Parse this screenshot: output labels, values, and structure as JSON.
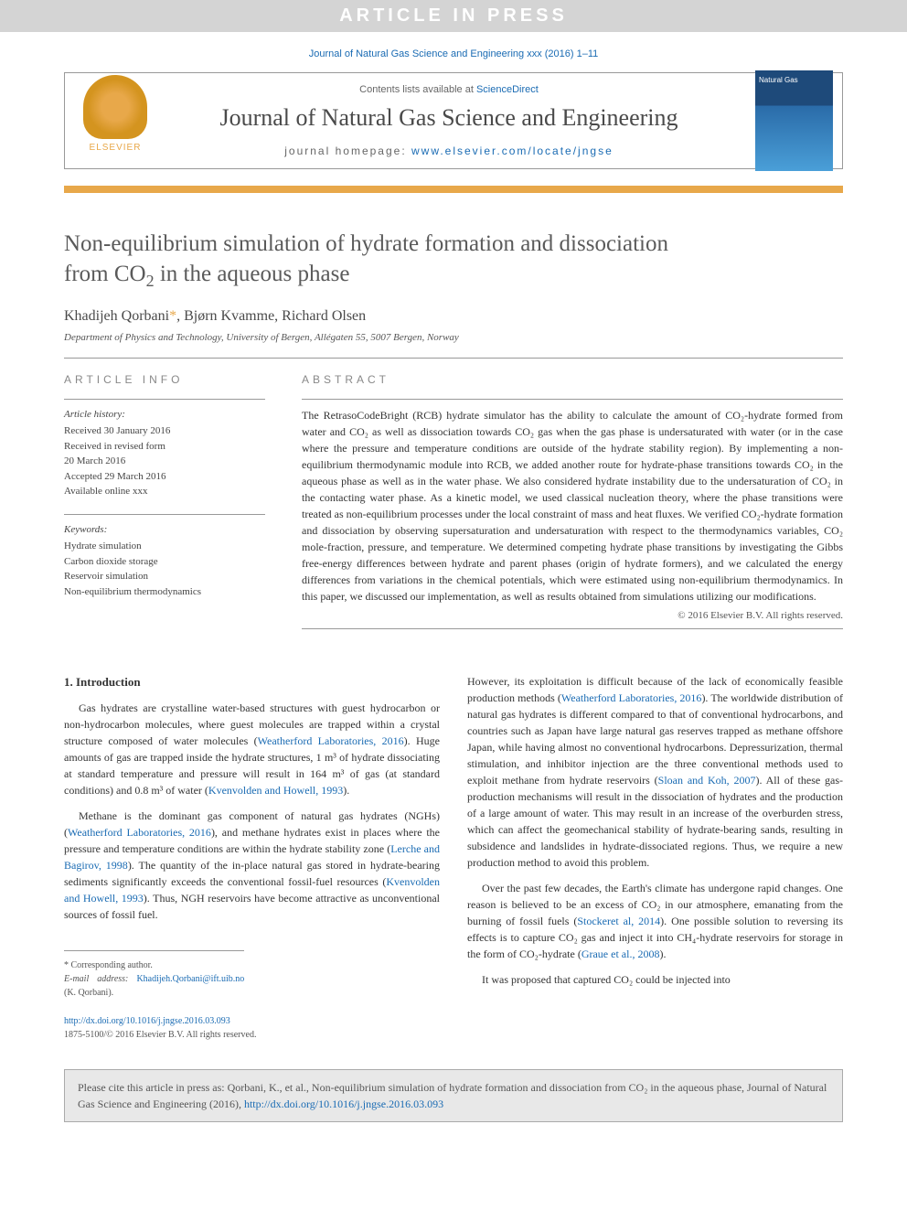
{
  "banner": {
    "text": "ARTICLE IN PRESS"
  },
  "citation_header": "Journal of Natural Gas Science and Engineering xxx (2016) 1–11",
  "header": {
    "contents_prefix": "Contents lists available at ",
    "contents_link": "ScienceDirect",
    "journal_name": "Journal of Natural Gas Science and Engineering",
    "homepage_prefix": "journal homepage: ",
    "homepage_url": "www.elsevier.com/locate/jngse",
    "publisher": "ELSEVIER",
    "cover_label": "Natural Gas"
  },
  "title": {
    "line1": "Non-equilibrium simulation of hydrate formation and dissociation",
    "line2_pre": "from CO",
    "line2_sub": "2",
    "line2_post": " in the aqueous phase"
  },
  "authors": {
    "a1": "Khadijeh Qorbani",
    "a2": "Bjørn Kvamme",
    "a3": "Richard Olsen",
    "corr_symbol": "*"
  },
  "affiliation": "Department of Physics and Technology, University of Bergen, Allégaten 55, 5007 Bergen, Norway",
  "info": {
    "label": "ARTICLE INFO",
    "history_title": "Article history:",
    "history": [
      "Received 30 January 2016",
      "Received in revised form",
      "20 March 2016",
      "Accepted 29 March 2016",
      "Available online xxx"
    ],
    "keywords_title": "Keywords:",
    "keywords": [
      "Hydrate simulation",
      "Carbon dioxide storage",
      "Reservoir simulation",
      "Non-equilibrium thermodynamics"
    ]
  },
  "abstract": {
    "label": "ABSTRACT",
    "text": "The RetrasoCodeBright (RCB) hydrate simulator has the ability to calculate the amount of CO₂-hydrate formed from water and CO₂ as well as dissociation towards CO₂ gas when the gas phase is undersaturated with water (or in the case where the pressure and temperature conditions are outside of the hydrate stability region). By implementing a non-equilibrium thermodynamic module into RCB, we added another route for hydrate-phase transitions towards CO₂ in the aqueous phase as well as in the water phase. We also considered hydrate instability due to the undersaturation of CO₂ in the contacting water phase. As a kinetic model, we used classical nucleation theory, where the phase transitions were treated as non-equilibrium processes under the local constraint of mass and heat fluxes. We verified CO₂-hydrate formation and dissociation by observing supersaturation and undersaturation with respect to the thermodynamics variables, CO₂ mole-fraction, pressure, and temperature. We determined competing hydrate phase transitions by investigating the Gibbs free-energy differences between hydrate and parent phases (origin of hydrate formers), and we calculated the energy differences from variations in the chemical potentials, which were estimated using non-equilibrium thermodynamics. In this paper, we discussed our implementation, as well as results obtained from simulations utilizing our modifications.",
    "copyright": "© 2016 Elsevier B.V. All rights reserved."
  },
  "body": {
    "s1_heading": "1. Introduction",
    "col1_p1_a": "Gas hydrates are crystalline water-based structures with guest hydrocarbon or non-hydrocarbon molecules, where guest molecules are trapped within a crystal structure composed of water molecules (",
    "col1_p1_link1": "Weatherford Laboratories, 2016",
    "col1_p1_b": "). Huge amounts of gas are trapped inside the hydrate structures, 1 m³ of hydrate dissociating at standard temperature and pressure will result in 164 m³ of gas (at standard conditions) and 0.8 m³ of water (",
    "col1_p1_link2": "Kvenvolden and Howell, 1993",
    "col1_p1_c": ").",
    "col1_p2_a": "Methane is the dominant gas component of natural gas hydrates (NGHs) (",
    "col1_p2_link1": "Weatherford Laboratories, 2016",
    "col1_p2_b": "), and methane hydrates exist in places where the pressure and temperature conditions are within the hydrate stability zone (",
    "col1_p2_link2": "Lerche and Bagirov, 1998",
    "col1_p2_c": "). The quantity of the in-place natural gas stored in hydrate-bearing sediments significantly exceeds the conventional fossil-fuel resources (",
    "col1_p2_link3": "Kvenvolden and Howell, 1993",
    "col1_p2_d": "). Thus, NGH reservoirs have become attractive as unconventional sources of fossil fuel.",
    "col2_p1_a": "However, its exploitation is difficult because of the lack of economically feasible production methods (",
    "col2_p1_link1": "Weatherford Laboratories, 2016",
    "col2_p1_b": "). The worldwide distribution of natural gas hydrates is different compared to that of conventional hydrocarbons, and countries such as Japan have large natural gas reserves trapped as methane offshore Japan, while having almost no conventional hydrocarbons. Depressurization, thermal stimulation, and inhibitor injection are the three conventional methods used to exploit methane from hydrate reservoirs (",
    "col2_p1_link2": "Sloan and Koh, 2007",
    "col2_p1_c": "). All of these gas-production mechanisms will result in the dissociation of hydrates and the production of a large amount of water. This may result in an increase of the overburden stress, which can affect the geomechanical stability of hydrate-bearing sands, resulting in subsidence and landslides in hydrate-dissociated regions. Thus, we require a new production method to avoid this problem.",
    "col2_p2_a": "Over the past few decades, the Earth's climate has undergone rapid changes. One reason is believed to be an excess of CO₂ in our atmosphere, emanating from the burning of fossil fuels (",
    "col2_p2_link1": "Stockeret al, 2014",
    "col2_p2_b": "). One possible solution to reversing its effects is to capture CO₂ gas and inject it into CH₄-hydrate reservoirs for storage in the form of CO₂-hydrate (",
    "col2_p2_link2": "Graue et al., 2008",
    "col2_p2_c": ").",
    "col2_p3": "It was proposed that captured CO₂ could be injected into"
  },
  "footnotes": {
    "corr": "* Corresponding author.",
    "email_label": "E-mail address: ",
    "email": "Khadijeh.Qorbani@ift.uib.no",
    "email_suffix": " (K. Qorbani)."
  },
  "doi": {
    "url": "http://dx.doi.org/10.1016/j.jngse.2016.03.093",
    "issn_line": "1875-5100/© 2016 Elsevier B.V. All rights reserved."
  },
  "citebox": {
    "text_a": "Please cite this article in press as: Qorbani, K., et al., Non-equilibrium simulation of hydrate formation and dissociation from CO₂ in the aqueous phase, Journal of Natural Gas Science and Engineering (2016), ",
    "link": "http://dx.doi.org/10.1016/j.jngse.2016.03.093"
  },
  "colors": {
    "banner_bg": "#d4d4d4",
    "link": "#1a6bb3",
    "accent": "#e8a84a",
    "text_gray": "#5a5a5a"
  }
}
